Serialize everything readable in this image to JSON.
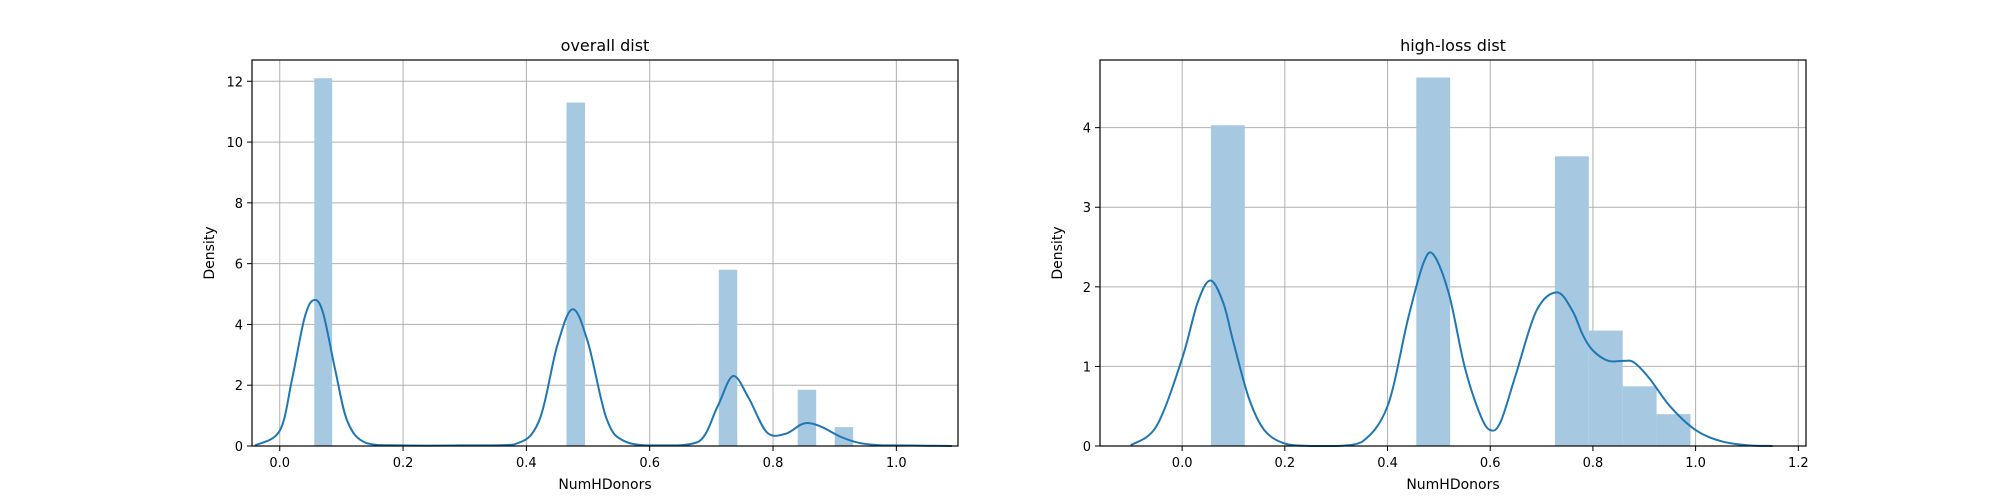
{
  "chart_data": [
    {
      "type": "bar",
      "title": "overall dist",
      "xlabel": "NumHDonors",
      "ylabel": "Density",
      "xlim": [
        -0.045,
        1.1
      ],
      "ylim": [
        0,
        12.7
      ],
      "xticks": [
        "0.0",
        "0.2",
        "0.4",
        "0.6",
        "0.8",
        "1.0"
      ],
      "yticks": [
        "0",
        "2",
        "4",
        "6",
        "8",
        "10",
        "12"
      ],
      "grid": true,
      "histogram": [
        {
          "x0": 0.056,
          "x1": 0.085,
          "value": 12.1
        },
        {
          "x0": 0.465,
          "x1": 0.495,
          "value": 11.3
        },
        {
          "x0": 0.712,
          "x1": 0.742,
          "value": 5.8
        },
        {
          "x0": 0.84,
          "x1": 0.87,
          "value": 1.85
        },
        {
          "x0": 0.9,
          "x1": 0.93,
          "value": 0.62
        }
      ],
      "kde": {
        "x": [
          -0.04,
          0.0,
          0.02,
          0.04,
          0.055,
          0.07,
          0.09,
          0.11,
          0.14,
          0.2,
          0.3,
          0.38,
          0.42,
          0.45,
          0.475,
          0.5,
          0.53,
          0.56,
          0.62,
          0.68,
          0.71,
          0.735,
          0.76,
          0.79,
          0.82,
          0.845,
          0.86,
          0.88,
          0.91,
          0.94,
          0.97,
          1.0,
          1.05,
          1.09
        ],
        "y": [
          0.02,
          0.5,
          2.2,
          4.2,
          4.8,
          4.4,
          2.5,
          0.8,
          0.1,
          0.02,
          0.02,
          0.05,
          0.8,
          3.3,
          4.5,
          3.4,
          0.9,
          0.15,
          0.02,
          0.15,
          1.3,
          2.3,
          1.6,
          0.45,
          0.4,
          0.7,
          0.75,
          0.62,
          0.3,
          0.1,
          0.03,
          0.02,
          0.01,
          0.0
        ]
      }
    },
    {
      "type": "bar",
      "title": "high-loss dist",
      "xlabel": "NumHDonors",
      "ylabel": "Density",
      "xlim": [
        -0.16,
        1.215
      ],
      "ylim": [
        0,
        4.85
      ],
      "xticks": [
        "0.0",
        "0.2",
        "0.4",
        "0.6",
        "0.8",
        "1.0",
        "1.2"
      ],
      "yticks": [
        "0",
        "1",
        "2",
        "3",
        "4"
      ],
      "grid": true,
      "histogram": [
        {
          "x0": 0.056,
          "x1": 0.122,
          "value": 4.03
        },
        {
          "x0": 0.456,
          "x1": 0.522,
          "value": 4.63
        },
        {
          "x0": 0.726,
          "x1": 0.792,
          "value": 3.64
        },
        {
          "x0": 0.792,
          "x1": 0.858,
          "value": 1.45
        },
        {
          "x0": 0.858,
          "x1": 0.924,
          "value": 0.75
        },
        {
          "x0": 0.924,
          "x1": 0.99,
          "value": 0.4
        }
      ],
      "kde": {
        "x": [
          -0.1,
          -0.05,
          0.0,
          0.03,
          0.055,
          0.08,
          0.1,
          0.13,
          0.16,
          0.2,
          0.25,
          0.3,
          0.35,
          0.4,
          0.44,
          0.47,
          0.49,
          0.52,
          0.55,
          0.58,
          0.6,
          0.62,
          0.65,
          0.69,
          0.73,
          0.76,
          0.78,
          0.8,
          0.83,
          0.86,
          0.88,
          0.91,
          0.95,
          1.0,
          1.05,
          1.1,
          1.15
        ],
        "y": [
          0.01,
          0.25,
          1.1,
          1.8,
          2.08,
          1.8,
          1.3,
          0.6,
          0.2,
          0.03,
          0.0,
          0.0,
          0.05,
          0.5,
          1.6,
          2.3,
          2.4,
          1.9,
          1.0,
          0.4,
          0.2,
          0.3,
          0.9,
          1.7,
          1.93,
          1.7,
          1.4,
          1.2,
          1.07,
          1.07,
          1.05,
          0.85,
          0.5,
          0.2,
          0.06,
          0.01,
          0.0
        ]
      }
    }
  ],
  "colors": {
    "bar": "#a6c8e1",
    "line": "#1f77b4",
    "grid": "#b0b0b0",
    "axis": "#000000"
  }
}
